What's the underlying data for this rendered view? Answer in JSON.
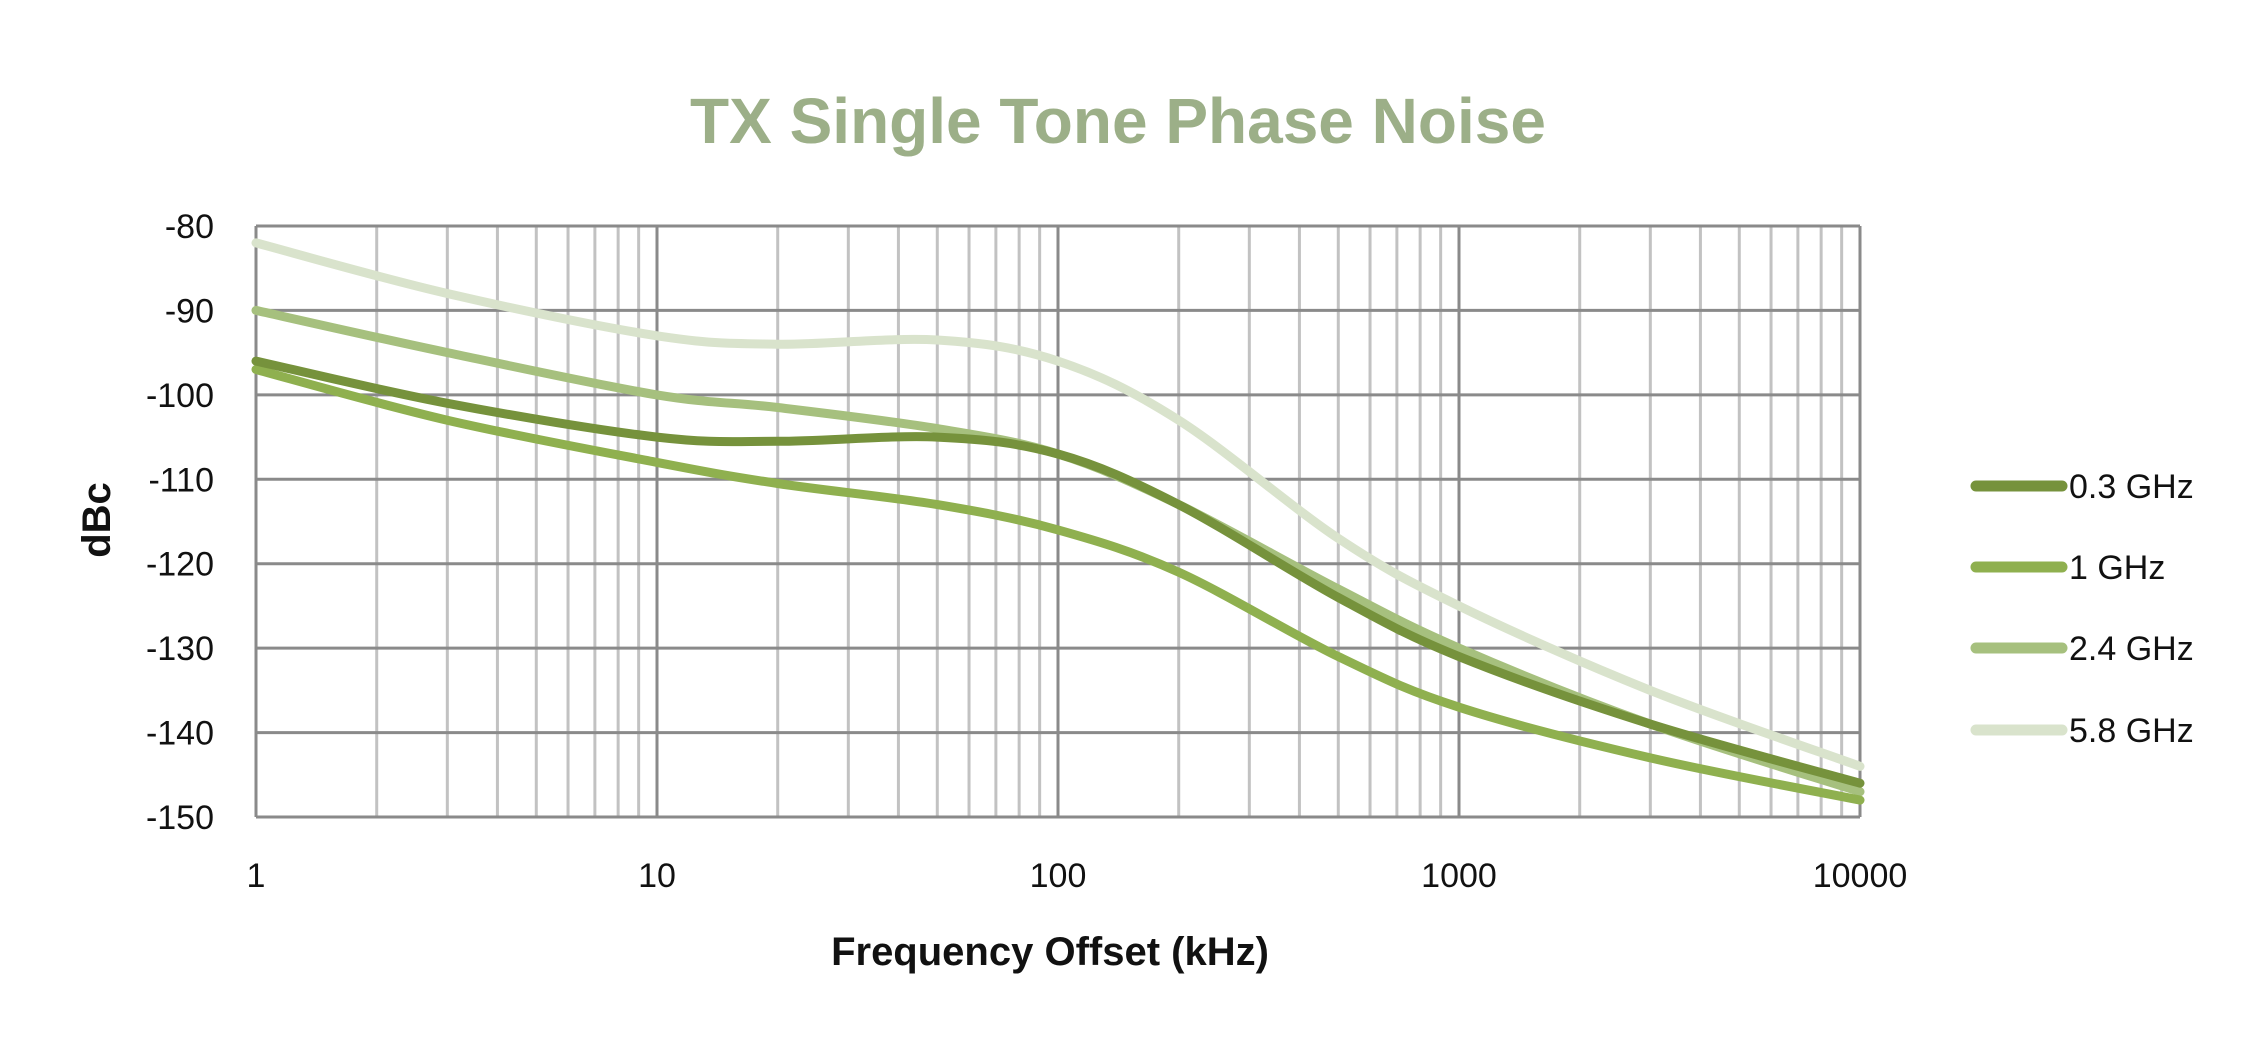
{
  "chart_data": {
    "type": "line",
    "title": "TX Single Tone Phase Noise",
    "xlabel": "Frequency Offset (kHz)",
    "ylabel": "dBc",
    "xscale": "log",
    "xlim": [
      1,
      10000
    ],
    "ylim": [
      -150,
      -80
    ],
    "xticks": [
      "1",
      "10",
      "100",
      "1000",
      "10000"
    ],
    "yticks": [
      "-80",
      "-90",
      "-100",
      "-110",
      "-120",
      "-130",
      "-140",
      "-150"
    ],
    "grid": true,
    "legend_position": "right",
    "series": [
      {
        "name": "0.3 GHz",
        "color": "#76923c",
        "x": [
          1,
          3,
          10,
          20,
          50,
          100,
          200,
          500,
          1000,
          3000,
          10000
        ],
        "y": [
          -96,
          -101,
          -105,
          -105.5,
          -105,
          -107,
          -113,
          -124,
          -131,
          -139,
          -146
        ]
      },
      {
        "name": "1 GHz",
        "color": "#8fb04f",
        "x": [
          1,
          3,
          10,
          20,
          50,
          100,
          200,
          500,
          1000,
          3000,
          10000
        ],
        "y": [
          -97,
          -103,
          -108,
          -110.5,
          -113,
          -116,
          -121,
          -131,
          -137,
          -143,
          -148
        ]
      },
      {
        "name": "2.4 GHz",
        "color": "#a6c07e",
        "x": [
          1,
          3,
          10,
          20,
          50,
          100,
          200,
          500,
          1000,
          3000,
          10000
        ],
        "y": [
          -90,
          -95,
          -100,
          -101.5,
          -104,
          -107,
          -113,
          -123,
          -130,
          -139,
          -147
        ]
      },
      {
        "name": "5.8 GHz",
        "color": "#d9e3cc",
        "x": [
          1,
          3,
          10,
          20,
          50,
          100,
          200,
          500,
          1000,
          3000,
          10000
        ],
        "y": [
          -82,
          -88,
          -93,
          -94,
          -93.5,
          -96,
          -103,
          -117,
          -125,
          -135,
          -144
        ]
      }
    ]
  }
}
